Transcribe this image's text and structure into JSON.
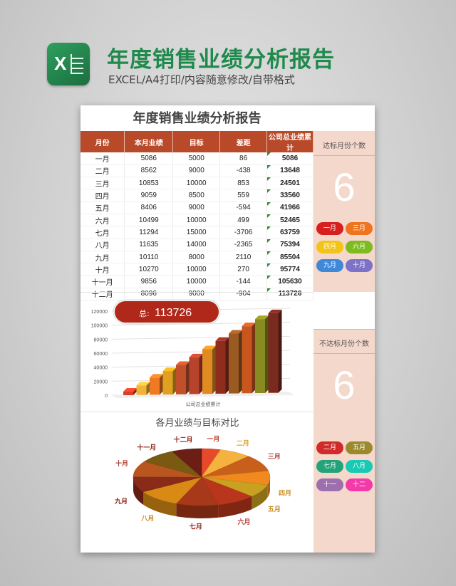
{
  "header": {
    "title": "年度销售业绩分析报告",
    "subtitle": "EXCEL/A4打印/内容随意修改/自带格式",
    "logo_icon": "excel-logo-icon"
  },
  "sheet": {
    "title": "年度销售业绩分析报告",
    "columns": [
      "月份",
      "本月业绩",
      "目标",
      "差距",
      "公司总业绩累计"
    ],
    "rows": [
      [
        "一月",
        "5086",
        "5000",
        "86",
        "5086"
      ],
      [
        "二月",
        "8562",
        "9000",
        "-438",
        "13648"
      ],
      [
        "三月",
        "10853",
        "10000",
        "853",
        "24501"
      ],
      [
        "四月",
        "9059",
        "8500",
        "559",
        "33560"
      ],
      [
        "五月",
        "8406",
        "9000",
        "-594",
        "41966"
      ],
      [
        "六月",
        "10499",
        "10000",
        "499",
        "52465"
      ],
      [
        "七月",
        "11294",
        "15000",
        "-3706",
        "63759"
      ],
      [
        "八月",
        "11635",
        "14000",
        "-2365",
        "75394"
      ],
      [
        "九月",
        "10110",
        "8000",
        "2110",
        "85504"
      ],
      [
        "十月",
        "10270",
        "10000",
        "270",
        "95774"
      ],
      [
        "十一月",
        "9856",
        "10000",
        "-144",
        "105630"
      ],
      [
        "十二月",
        "8096",
        "9000",
        "-904",
        "113726"
      ]
    ]
  },
  "side_panel": {
    "reached_label": "达标月份个数",
    "reached_count": "6",
    "reached_months": [
      {
        "label": "一月",
        "color": "#d81e1e"
      },
      {
        "label": "三月",
        "color": "#f0731e"
      },
      {
        "label": "四月",
        "color": "#f2c418"
      },
      {
        "label": "六月",
        "color": "#7dbb1f"
      },
      {
        "label": "九月",
        "color": "#3f88d8"
      },
      {
        "label": "十月",
        "color": "#7e72c8"
      }
    ],
    "missed_label": "不达标月份个数",
    "missed_count": "6",
    "missed_months": [
      {
        "label": "二月",
        "color": "#cf2b2b"
      },
      {
        "label": "五月",
        "color": "#9a8a2c"
      },
      {
        "label": "七月",
        "color": "#23a37a"
      },
      {
        "label": "八月",
        "color": "#18c9b5"
      },
      {
        "label": "十一",
        "color": "#9d6fad"
      },
      {
        "label": "十二",
        "color": "#f23ba8"
      }
    ]
  },
  "chart_data": [
    {
      "type": "bar",
      "total_badge": {
        "prefix": "总:",
        "value": "113726"
      },
      "xlabel": "公司总业绩累计",
      "ylim": [
        0,
        120000
      ],
      "yticks": [
        "0",
        "20000",
        "40000",
        "60000",
        "80000",
        "100000",
        "120000"
      ],
      "values": [
        5086,
        13648,
        24501,
        33560,
        41966,
        52465,
        63759,
        75394,
        85504,
        95774,
        105630,
        113726
      ],
      "colors": [
        "#d8402a",
        "#f2b23a",
        "#f07a22",
        "#e0a020",
        "#c0502a",
        "#b8432c",
        "#e08a24",
        "#8f2d1c",
        "#9a5a22",
        "#c9561f",
        "#8a8a22",
        "#7a2a1e"
      ]
    },
    {
      "type": "pie",
      "title": "各月业绩与目标对比",
      "labels": [
        "一月",
        "二月",
        "三月",
        "四月",
        "五月",
        "六月",
        "七月",
        "八月",
        "九月",
        "十月",
        "十一月",
        "十二月"
      ],
      "values": [
        5086,
        8562,
        10853,
        9059,
        8406,
        10499,
        11294,
        11635,
        10110,
        10270,
        9856,
        8096
      ],
      "colors": [
        "#e8492a",
        "#f6b23e",
        "#c8601c",
        "#f08a1e",
        "#c9a020",
        "#b9361c",
        "#a8381a",
        "#d88a14",
        "#8a2a18",
        "#b9561f",
        "#7a5a12",
        "#6a1e14"
      ],
      "label_colors": [
        "#c0392b",
        "#d99a1a",
        "#b03a2e",
        "#c98a1a",
        "#c98a1a",
        "#b03a2e",
        "#8a1f14",
        "#c98a1a",
        "#8a1f14",
        "#b03a2e",
        "#8a1f14",
        "#8a1f14"
      ]
    }
  ]
}
